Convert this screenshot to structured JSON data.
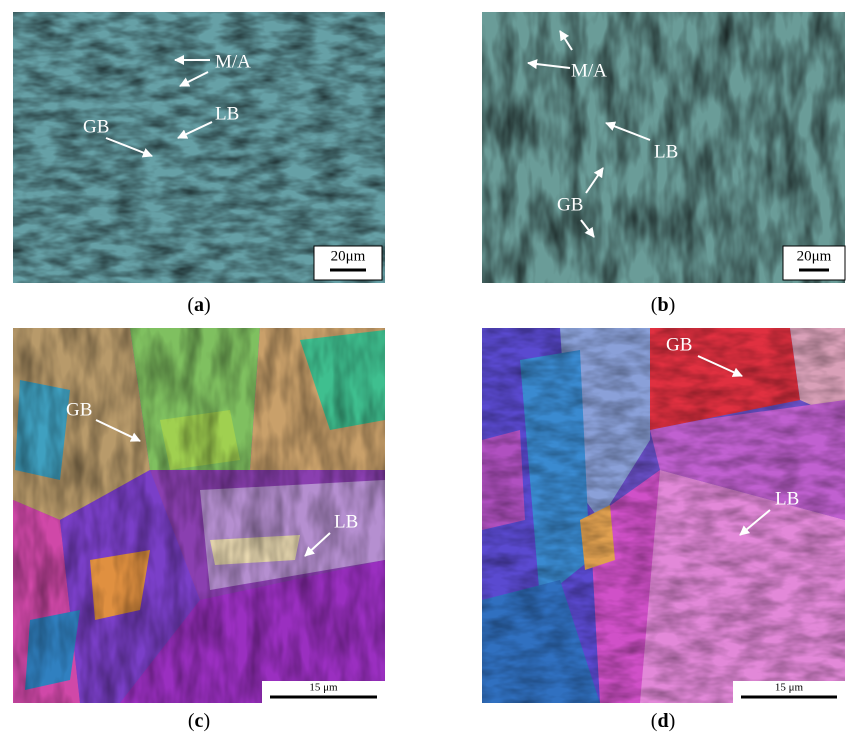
{
  "panels": [
    {
      "caption": [
        "(",
        "a",
        ")"
      ],
      "scale_bar": "20μm",
      "annotations": [
        "M/A",
        "LB",
        "GB"
      ]
    },
    {
      "caption": [
        "(",
        "b",
        ")"
      ],
      "scale_bar": "20μm",
      "annotations": [
        "M/A",
        "LB",
        "GB"
      ]
    },
    {
      "caption": [
        "(",
        "c",
        ")"
      ],
      "scale_bar": "15 μm",
      "annotations": [
        "GB",
        "LB"
      ]
    },
    {
      "caption": [
        "(",
        "d",
        ")"
      ],
      "scale_bar": "15 μm",
      "annotations": [
        "GB",
        "LB"
      ]
    }
  ]
}
